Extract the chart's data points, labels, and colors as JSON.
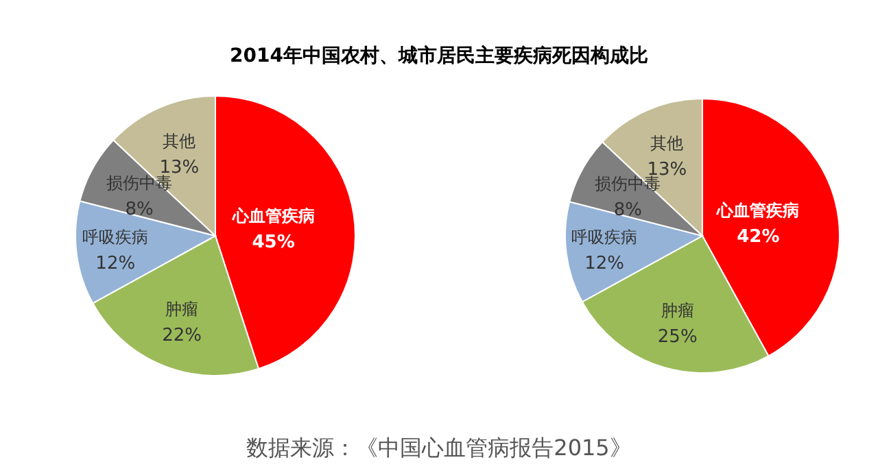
{
  "chart_data": [
    {
      "type": "pie",
      "title": "2014年中国农村、城市居民主要疾病死因构成比",
      "categories": [
        "心血管疾病",
        "肿瘤",
        "呼吸疾病",
        "损伤中毒",
        "其他"
      ],
      "values": [
        45,
        22,
        12,
        8,
        13
      ],
      "value_labels": [
        "45%",
        "22%",
        "12%",
        "8%",
        "13%"
      ],
      "colors": [
        "#ff0000",
        "#9bbb59",
        "#95b3d7",
        "#7f7f7f",
        "#c4bd97"
      ]
    },
    {
      "type": "pie",
      "annotations": [
        "数据来源：《中国心血管病报告2015》"
      ],
      "categories": [
        "心血管疾病",
        "肿瘤",
        "呼吸疾病",
        "损伤中毒",
        "其他"
      ],
      "values": [
        42,
        25,
        12,
        8,
        13
      ],
      "value_labels": [
        "42%",
        "25%",
        "12%",
        "8%",
        "13%"
      ],
      "colors": [
        "#ff0000",
        "#9bbb59",
        "#95b3d7",
        "#7f7f7f",
        "#c4bd97"
      ]
    }
  ]
}
